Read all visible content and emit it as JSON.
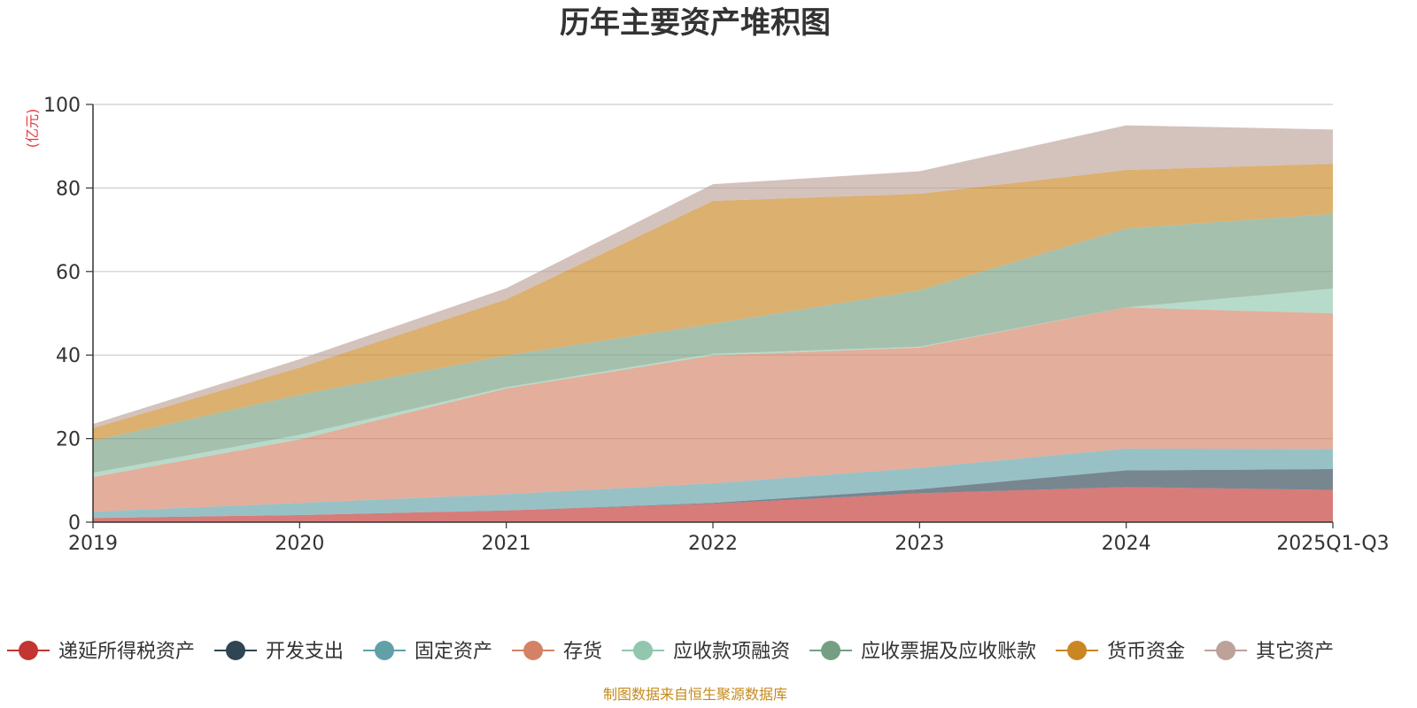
{
  "chart_data": {
    "type": "area",
    "stacked": true,
    "title": "历年主要资产堆积图",
    "ylabel": "(亿元)",
    "xlabel": "",
    "ylim": [
      0,
      100
    ],
    "yticks": [
      0,
      20,
      40,
      60,
      80,
      100
    ],
    "grid": true,
    "legend_position": "bottom",
    "categories": [
      "2019",
      "2020",
      "2021",
      "2022",
      "2023",
      "2024",
      "2025Q1-Q3"
    ],
    "series": [
      {
        "name": "递延所得税资产",
        "color": "#c23531",
        "values": [
          1.0,
          1.7,
          2.8,
          4.4,
          6.9,
          8.4,
          7.7
        ]
      },
      {
        "name": "开发支出",
        "color": "#2f4554",
        "values": [
          0.0,
          0.0,
          0.0,
          0.2,
          1.0,
          4.0,
          5.0
        ]
      },
      {
        "name": "固定资产",
        "color": "#61a0a8",
        "values": [
          1.5,
          2.9,
          3.9,
          4.7,
          5.1,
          5.2,
          4.8
        ]
      },
      {
        "name": "存货",
        "color": "#d48265",
        "values": [
          8.3,
          15.2,
          25.3,
          30.6,
          28.8,
          33.8,
          32.5
        ]
      },
      {
        "name": "应收款项融资",
        "color": "#91c7ae",
        "values": [
          1.0,
          1.1,
          0.3,
          0.4,
          0.2,
          0.0,
          5.9
        ]
      },
      {
        "name": "应收票据及应收账款",
        "color": "#749f83",
        "values": [
          7.7,
          9.6,
          7.6,
          7.2,
          13.5,
          18.9,
          17.9
        ]
      },
      {
        "name": "货币资金",
        "color": "#ca8622",
        "values": [
          3.0,
          6.5,
          13.4,
          29.4,
          23.1,
          14.0,
          12.0
        ]
      },
      {
        "name": "其它资产",
        "color": "#bda29a",
        "values": [
          1.0,
          2.0,
          2.7,
          4.0,
          5.4,
          10.7,
          8.2
        ]
      }
    ]
  },
  "source_note": "制图数据来自恒生聚源数据库"
}
